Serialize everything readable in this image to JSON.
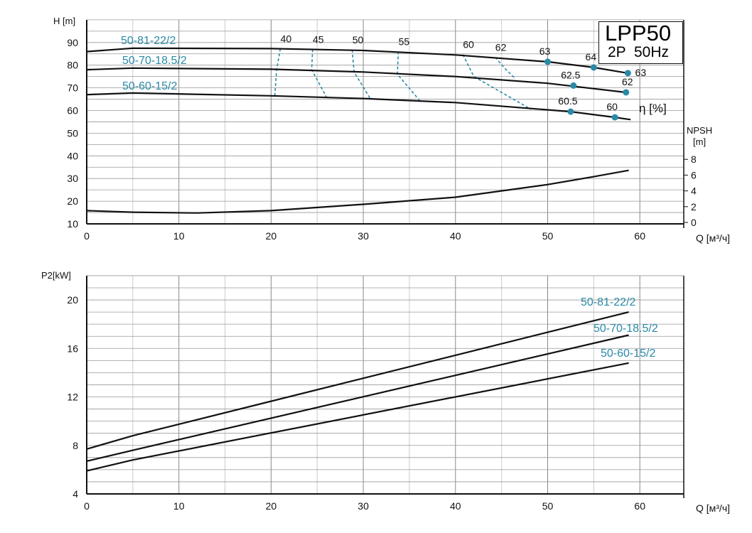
{
  "title": {
    "model": "LPP50",
    "spec": "2P  50Hz"
  },
  "colors": {
    "accent": "#2a8aa8",
    "curve": "#111111",
    "grid": "#bbbbbb"
  },
  "chart_data": [
    {
      "type": "line",
      "xlabel": "Q [м³/ч]",
      "ylabel": "H [m]",
      "y2label": [
        "NPSH",
        "[m]"
      ],
      "eta_label": "η [%]",
      "xlim": [
        0,
        65
      ],
      "ylim": [
        10,
        100
      ],
      "y2lim": [
        0,
        10
      ],
      "grid": true,
      "xticks": [
        "0",
        "10",
        "20",
        "30",
        "40",
        "50",
        "60"
      ],
      "yticks": [
        "10",
        "20",
        "30",
        "40",
        "50",
        "60",
        "70",
        "80",
        "90"
      ],
      "y2ticks": [
        "0",
        "2",
        "4",
        "6",
        "8"
      ],
      "series": [
        {
          "name": "50-81-22/2",
          "x": [
            0,
            5,
            20,
            30,
            40,
            50,
            55,
            58.7
          ],
          "y": [
            86,
            87.5,
            87.3,
            86.5,
            84.5,
            81.5,
            79,
            76.5
          ]
        },
        {
          "name": "50-70-18.5/2",
          "x": [
            0,
            5,
            20,
            30,
            40,
            50,
            58.5
          ],
          "y": [
            78,
            78.7,
            78.2,
            77,
            75,
            72,
            68
          ]
        },
        {
          "name": "50-60-15/2",
          "x": [
            0,
            5,
            20,
            30,
            40,
            52.5,
            57.3,
            59
          ],
          "y": [
            67,
            67.7,
            66.5,
            65.3,
            63.5,
            59.5,
            57,
            56
          ]
        },
        {
          "name": "NPSH",
          "axis": "y2",
          "x": [
            0,
            5,
            12,
            20,
            30,
            40,
            50,
            55,
            58.8
          ],
          "y": [
            1.5,
            1.3,
            1.2,
            1.5,
            2.3,
            3.2,
            4.8,
            5.8,
            6.6
          ]
        }
      ],
      "efficiency_points": [
        {
          "label": "63",
          "x": 50,
          "y": 81.5
        },
        {
          "label": "64",
          "x": 55,
          "y": 79
        },
        {
          "label": "63",
          "x": 58.7,
          "y": 76.5
        },
        {
          "label": "62.5",
          "x": 52.8,
          "y": 71
        },
        {
          "label": "62",
          "x": 58.5,
          "y": 68
        },
        {
          "label": "60.5",
          "x": 52.5,
          "y": 59.5
        },
        {
          "label": "60",
          "x": 57.3,
          "y": 57
        }
      ],
      "iso_efficiency": [
        {
          "label": "40",
          "x": [
            21,
            20.6,
            20.4
          ],
          "y": [
            87.3,
            78,
            66.5
          ]
        },
        {
          "label": "45",
          "x": [
            24.5,
            24.4,
            26
          ],
          "y": [
            87,
            78,
            66
          ]
        },
        {
          "label": "50",
          "x": [
            28.8,
            29,
            30.8
          ],
          "y": [
            86.8,
            77,
            65
          ]
        },
        {
          "label": "55",
          "x": [
            33.8,
            33.7,
            36.2
          ],
          "y": [
            86,
            76,
            64
          ]
        },
        {
          "label": "60",
          "x": [
            40.8,
            42,
            48.2
          ],
          "y": [
            84.7,
            75,
            60.5
          ]
        },
        {
          "label": "62",
          "x": [
            44.3,
            45.5,
            46.5
          ],
          "y": [
            83.5,
            78,
            74
          ]
        }
      ]
    },
    {
      "type": "line",
      "xlabel": "Q [м³/ч]",
      "ylabel": "P2[kW]",
      "xlim": [
        0,
        65
      ],
      "ylim": [
        4,
        22
      ],
      "grid": true,
      "xticks": [
        "0",
        "10",
        "20",
        "30",
        "40",
        "50",
        "60"
      ],
      "yticks": [
        "4",
        "8",
        "12",
        "16",
        "20"
      ],
      "series": [
        {
          "name": "50-81-22/2",
          "x": [
            0,
            5,
            58.8
          ],
          "y": [
            7.7,
            8.8,
            19
          ]
        },
        {
          "name": "50-70-18.5/2",
          "x": [
            0,
            5,
            58.8
          ],
          "y": [
            6.7,
            7.6,
            17.1
          ]
        },
        {
          "name": "50-60-15/2",
          "x": [
            0,
            5,
            58.8
          ],
          "y": [
            5.9,
            6.8,
            14.8
          ]
        }
      ]
    }
  ]
}
